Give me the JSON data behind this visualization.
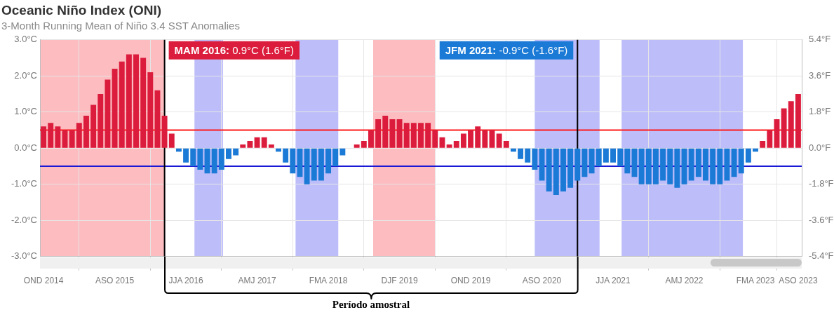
{
  "chart_data": {
    "type": "bar",
    "title": "Oceanic Niño Index (ONI)",
    "subtitle": "3-Month Running Mean of Niño 3.4 SST Anomalies",
    "x": [
      "2014-11",
      "2014-12",
      "2015-01",
      "2015-02",
      "2015-03",
      "2015-04",
      "2015-05",
      "2015-06",
      "2015-07",
      "2015-08",
      "2015-09",
      "2015-10",
      "2015-11",
      "2015-12",
      "2016-01",
      "2016-02",
      "2016-03",
      "2016-04",
      "2016-05",
      "2016-06",
      "2016-07",
      "2016-08",
      "2016-09",
      "2016-10",
      "2016-11",
      "2016-12",
      "2017-01",
      "2017-02",
      "2017-03",
      "2017-04",
      "2017-05",
      "2017-06",
      "2017-07",
      "2017-08",
      "2017-09",
      "2017-10",
      "2017-11",
      "2017-12",
      "2018-01",
      "2018-02",
      "2018-03",
      "2018-04",
      "2018-05",
      "2018-06",
      "2018-07",
      "2018-08",
      "2018-09",
      "2018-10",
      "2018-11",
      "2018-12",
      "2019-01",
      "2019-02",
      "2019-03",
      "2019-04",
      "2019-05",
      "2019-06",
      "2019-07",
      "2019-08",
      "2019-09",
      "2019-10",
      "2019-11",
      "2019-12",
      "2020-01",
      "2020-02",
      "2020-03",
      "2020-04",
      "2020-05",
      "2020-06",
      "2020-07",
      "2020-08",
      "2020-09",
      "2020-10",
      "2020-11",
      "2020-12",
      "2021-01",
      "2021-02",
      "2021-03",
      "2021-04",
      "2021-05",
      "2021-06",
      "2021-07",
      "2021-08",
      "2021-09",
      "2021-10",
      "2021-11",
      "2021-12",
      "2022-01",
      "2022-02",
      "2022-03",
      "2022-04",
      "2022-05",
      "2022-06",
      "2022-07",
      "2022-08",
      "2022-09",
      "2022-10",
      "2022-11",
      "2022-12",
      "2023-01",
      "2023-02",
      "2023-03",
      "2023-04",
      "2023-05",
      "2023-06",
      "2023-07",
      "2023-08",
      "2023-09"
    ],
    "values": [
      0.6,
      0.7,
      0.6,
      0.5,
      0.5,
      0.7,
      0.9,
      1.2,
      1.5,
      1.9,
      2.2,
      2.4,
      2.6,
      2.6,
      2.5,
      2.1,
      1.6,
      0.9,
      0.4,
      -0.1,
      -0.4,
      -0.5,
      -0.6,
      -0.7,
      -0.7,
      -0.6,
      -0.3,
      -0.2,
      0.1,
      0.2,
      0.3,
      0.3,
      0.1,
      -0.1,
      -0.4,
      -0.7,
      -0.8,
      -1.0,
      -0.9,
      -0.9,
      -0.7,
      -0.5,
      -0.2,
      0.0,
      0.1,
      0.2,
      0.5,
      0.8,
      0.9,
      0.8,
      0.8,
      0.7,
      0.7,
      0.7,
      0.7,
      0.5,
      0.3,
      0.1,
      0.2,
      0.4,
      0.5,
      0.6,
      0.5,
      0.5,
      0.4,
      0.2,
      -0.1,
      -0.3,
      -0.4,
      -0.6,
      -0.9,
      -1.2,
      -1.3,
      -1.2,
      -1.1,
      -0.9,
      -0.8,
      -0.7,
      -0.5,
      -0.4,
      -0.4,
      -0.5,
      -0.7,
      -0.8,
      -1.0,
      -1.0,
      -1.0,
      -0.9,
      -1.0,
      -1.1,
      -1.0,
      -0.9,
      -0.8,
      -0.9,
      -1.0,
      -1.0,
      -0.9,
      -0.8,
      -0.7,
      -0.4,
      -0.1,
      0.2,
      0.5,
      0.8,
      1.1,
      1.3,
      1.5
    ],
    "colors": [
      "#dc1c3c",
      "#dc1c3c",
      "#dc1c3c",
      "#dc1c3c",
      "#dc1c3c",
      "#dc1c3c",
      "#dc1c3c",
      "#dc1c3c",
      "#dc1c3c",
      "#dc1c3c",
      "#dc1c3c",
      "#dc1c3c",
      "#dc1c3c",
      "#dc1c3c",
      "#dc1c3c",
      "#dc1c3c",
      "#dc1c3c",
      "#dc1c3c",
      "#dc1c3c",
      "#1a7ad6",
      "#1a7ad6",
      "#1a7ad6",
      "#1a7ad6",
      "#1a7ad6",
      "#1a7ad6",
      "#1a7ad6",
      "#1a7ad6",
      "#1a7ad6",
      "#dc1c3c",
      "#dc1c3c",
      "#dc1c3c",
      "#dc1c3c",
      "#dc1c3c",
      "#1a7ad6",
      "#1a7ad6",
      "#1a7ad6",
      "#1a7ad6",
      "#1a7ad6",
      "#1a7ad6",
      "#1a7ad6",
      "#1a7ad6",
      "#1a7ad6",
      "#1a7ad6",
      "#1a7ad6",
      "#dc1c3c",
      "#dc1c3c",
      "#dc1c3c",
      "#dc1c3c",
      "#dc1c3c",
      "#dc1c3c",
      "#dc1c3c",
      "#dc1c3c",
      "#dc1c3c",
      "#dc1c3c",
      "#dc1c3c",
      "#dc1c3c",
      "#dc1c3c",
      "#dc1c3c",
      "#dc1c3c",
      "#dc1c3c",
      "#dc1c3c",
      "#dc1c3c",
      "#dc1c3c",
      "#dc1c3c",
      "#dc1c3c",
      "#dc1c3c",
      "#1a7ad6",
      "#1a7ad6",
      "#1a7ad6",
      "#1a7ad6",
      "#1a7ad6",
      "#1a7ad6",
      "#1a7ad6",
      "#1a7ad6",
      "#1a7ad6",
      "#1a7ad6",
      "#1a7ad6",
      "#1a7ad6",
      "#1a7ad6",
      "#1a7ad6",
      "#1a7ad6",
      "#1a7ad6",
      "#1a7ad6",
      "#1a7ad6",
      "#1a7ad6",
      "#1a7ad6",
      "#1a7ad6",
      "#1a7ad6",
      "#1a7ad6",
      "#1a7ad6",
      "#1a7ad6",
      "#1a7ad6",
      "#1a7ad6",
      "#1a7ad6",
      "#1a7ad6",
      "#1a7ad6",
      "#1a7ad6",
      "#1a7ad6",
      "#1a7ad6",
      "#1a7ad6",
      "#1a7ad6",
      "#dc1c3c",
      "#dc1c3c",
      "#dc1c3c",
      "#dc1c3c",
      "#dc1c3c",
      "#dc1c3c"
    ],
    "xlim": [
      "2014-10-16",
      "2023-09-16"
    ],
    "xticks": [
      {
        "value": "2014-11",
        "label": "OND 2014"
      },
      {
        "value": "2015-09",
        "label": "ASO 2015"
      },
      {
        "value": "2016-07",
        "label": "JJA 2016"
      },
      {
        "value": "2017-05",
        "label": "AMJ 2017"
      },
      {
        "value": "2018-03",
        "label": "FMA 2018"
      },
      {
        "value": "2019-01",
        "label": "DJF 2019"
      },
      {
        "value": "2019-11",
        "label": "OND 2019"
      },
      {
        "value": "2020-09",
        "label": "ASO 2020"
      },
      {
        "value": "2021-07",
        "label": "JJA 2021"
      },
      {
        "value": "2022-05",
        "label": "AMJ 2022"
      },
      {
        "value": "2023-03",
        "label": "FMA 2023"
      },
      {
        "value": "2023-09",
        "label": "ASO 2023"
      }
    ],
    "ylim": [
      -3,
      3
    ],
    "yticks": [
      {
        "value": -3,
        "label": "-3.0°C"
      },
      {
        "value": -2,
        "label": "-2.0°C"
      },
      {
        "value": -1,
        "label": "-1.0°C"
      },
      {
        "value": 0,
        "label": "0.0°C"
      },
      {
        "value": 1,
        "label": "1.0°C"
      },
      {
        "value": 2,
        "label": "2.0°C"
      },
      {
        "value": 3,
        "label": "3.0°C"
      }
    ],
    "y2lim": [
      -5.4,
      5.4
    ],
    "y2ticks": [
      {
        "value": -5.4,
        "label": "-5.4°F"
      },
      {
        "value": -3.6,
        "label": "-3.6°F"
      },
      {
        "value": -1.8,
        "label": "-1.8°F"
      },
      {
        "value": 0,
        "label": "0.0°F"
      },
      {
        "value": 1.8,
        "label": "1.8°F"
      },
      {
        "value": 3.6,
        "label": "3.6°F"
      },
      {
        "value": 5.4,
        "label": "5.4°F"
      }
    ],
    "grid": true,
    "ref_lines": [
      {
        "axis": "y",
        "value": 0.5,
        "color": "#ff1a1a"
      },
      {
        "axis": "y",
        "value": -0.5,
        "color": "#1a1ad6"
      },
      {
        "axis": "x",
        "value": "2016-04",
        "color": "#000000"
      },
      {
        "axis": "x",
        "value": "2021-02",
        "color": "#000000"
      }
    ],
    "bands": [
      {
        "axis": "x",
        "from": "2014-10-16",
        "to": "2016-04-03",
        "color": "#fcbcc0"
      },
      {
        "axis": "x",
        "from": "2016-08-07",
        "to": "2016-12-07",
        "color": "#bdbdfa"
      },
      {
        "axis": "x",
        "from": "2017-10-13",
        "to": "2018-04-13",
        "color": "#bdbdfa"
      },
      {
        "axis": "x",
        "from": "2018-09-10",
        "to": "2019-06-01",
        "color": "#fcbcc0"
      },
      {
        "axis": "x",
        "from": "2020-08-01",
        "to": "2021-05-04",
        "color": "#bdbdfa"
      },
      {
        "axis": "x",
        "from": "2021-08-07",
        "to": "2023-01-08",
        "color": "#bdbdfa"
      }
    ],
    "annotations": [
      "MAM 2016: 0.9°C (1.6°F)",
      "JFM 2021: -0.9°C (-1.6°F)",
      "Período amostral"
    ]
  }
}
